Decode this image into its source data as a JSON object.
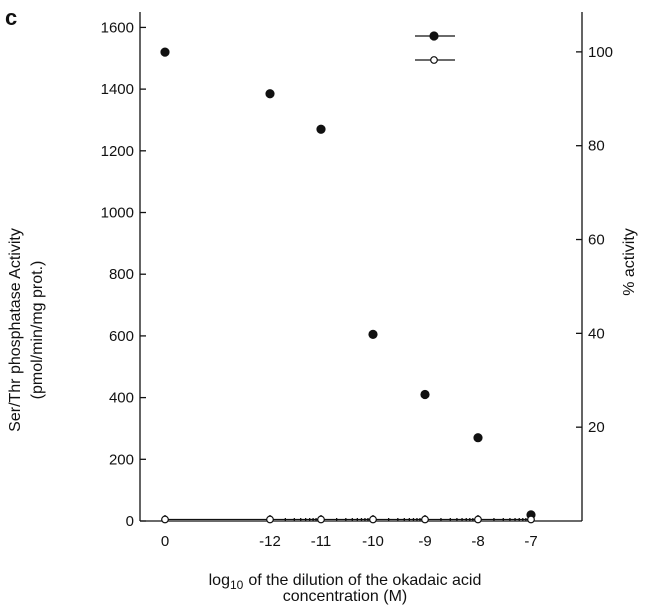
{
  "panel_label": "c",
  "chart_data": {
    "type": "scatter",
    "categories": [
      "0",
      "-12",
      "-11",
      "-10",
      "-9",
      "-8",
      "-7"
    ],
    "xlabel_line1_prefix": "log",
    "xlabel_line1_subscript": "10",
    "xlabel_line1_suffix": "of the dilution of the okadaic acid",
    "xlabel_line2": "concentration  (M)",
    "ylabel_line1": "Ser/Thr phosphatase Activity",
    "ylabel_line2": "(pmol/min/mg prot.)",
    "y2label": "% activity",
    "ylim": [
      0,
      1650
    ],
    "y2lim": [
      0,
      108.5
    ],
    "yticks": [
      0,
      200,
      400,
      600,
      800,
      1000,
      1200,
      1400,
      1600
    ],
    "y2ticks": [
      20,
      40,
      60,
      80,
      100
    ],
    "legend_position": "top-right",
    "grid": false,
    "series": [
      {
        "marker": "filled-circle",
        "values": [
          1520,
          1385,
          1270,
          605,
          410,
          270,
          20
        ]
      },
      {
        "marker": "open-circle",
        "values": [
          5,
          5,
          5,
          5,
          5,
          5,
          5
        ]
      }
    ]
  }
}
